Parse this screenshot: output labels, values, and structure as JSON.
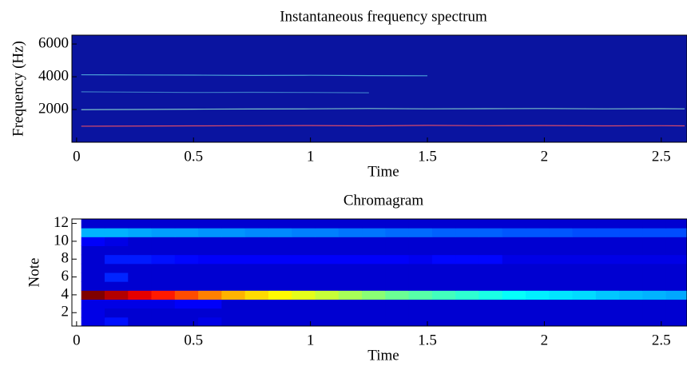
{
  "chart_data": [
    {
      "type": "line",
      "title": "Instantaneous frequency spectrum",
      "xlabel": "Time",
      "ylabel": "Frequency (Hz)",
      "background": "#0a14a0",
      "x": [
        0.02,
        0.25,
        0.5,
        0.75,
        1,
        1.25,
        1.5,
        1.75,
        2,
        2.25,
        2.5,
        2.6
      ],
      "series": [
        {
          "color": "#d84a6a",
          "values": [
            980,
            990,
            1000,
            1010,
            1020,
            1000,
            1030,
            1010,
            1020,
            1000,
            1010,
            1000
          ]
        },
        {
          "color": "#7cc0c8",
          "values": [
            1990,
            2000,
            2020,
            2030,
            2040,
            2060,
            2040,
            2050,
            2060,
            2040,
            2050,
            2040
          ]
        },
        {
          "color": "#3a78c8",
          "values": [
            3080,
            3060,
            3040,
            3050,
            3040,
            3020,
            null,
            null,
            null,
            null,
            null,
            null
          ]
        },
        {
          "color": "#4aa0d8",
          "values": [
            4120,
            4110,
            4100,
            4080,
            4090,
            4070,
            4060,
            null,
            null,
            null,
            null,
            null
          ]
        }
      ],
      "xlim": [
        -0.02,
        2.61
      ],
      "xticks": [
        0,
        0.5,
        1,
        1.5,
        2,
        2.5
      ],
      "ylim": [
        0,
        6540
      ],
      "yticks": [
        2000,
        4000,
        6000
      ]
    },
    {
      "type": "heatmap",
      "title": "Chromagram",
      "xlabel": "Time",
      "ylabel": "Note",
      "colormap": "jet",
      "clim": [
        0,
        1
      ],
      "x": [
        0.07,
        0.17,
        0.27,
        0.37,
        0.47,
        0.57,
        0.67,
        0.77,
        0.87,
        0.97,
        1.07,
        1.17,
        1.27,
        1.37,
        1.47,
        1.57,
        1.67,
        1.77,
        1.87,
        1.97,
        2.07,
        2.17,
        2.27,
        2.37,
        2.47,
        2.57
      ],
      "y": [
        1,
        2,
        3,
        4,
        5,
        6,
        7,
        8,
        9,
        10,
        11,
        12
      ],
      "z": [
        [
          0.1,
          0.14,
          0.08,
          0.08,
          0.08,
          0.1,
          0.08,
          0.08,
          0.08,
          0.08,
          0.08,
          0.08,
          0.08,
          0.08,
          0.08,
          0.08,
          0.08,
          0.08,
          0.08,
          0.08,
          0.08,
          0.08,
          0.08,
          0.08,
          0.08,
          0.08
        ],
        [
          0.1,
          0.08,
          0.08,
          0.08,
          0.08,
          0.08,
          0.08,
          0.08,
          0.08,
          0.08,
          0.08,
          0.08,
          0.08,
          0.08,
          0.08,
          0.08,
          0.08,
          0.08,
          0.08,
          0.08,
          0.08,
          0.08,
          0.08,
          0.08,
          0.08,
          0.08
        ],
        [
          0.1,
          0.1,
          0.1,
          0.1,
          0.12,
          0.12,
          0.08,
          0.08,
          0.08,
          0.08,
          0.08,
          0.08,
          0.08,
          0.08,
          0.08,
          0.08,
          0.08,
          0.08,
          0.08,
          0.08,
          0.08,
          0.08,
          0.08,
          0.08,
          0.08,
          0.08
        ],
        [
          1.0,
          0.95,
          0.9,
          0.85,
          0.8,
          0.75,
          0.7,
          0.66,
          0.63,
          0.6,
          0.57,
          0.54,
          0.51,
          0.48,
          0.46,
          0.44,
          0.42,
          0.4,
          0.38,
          0.36,
          0.35,
          0.34,
          0.32,
          0.31,
          0.3,
          0.29
        ],
        [
          0.08,
          0.08,
          0.08,
          0.08,
          0.08,
          0.08,
          0.08,
          0.08,
          0.08,
          0.08,
          0.08,
          0.08,
          0.08,
          0.08,
          0.08,
          0.08,
          0.08,
          0.08,
          0.08,
          0.08,
          0.08,
          0.08,
          0.08,
          0.08,
          0.08,
          0.08
        ],
        [
          0.08,
          0.16,
          0.08,
          0.08,
          0.08,
          0.08,
          0.08,
          0.08,
          0.08,
          0.08,
          0.08,
          0.08,
          0.08,
          0.08,
          0.08,
          0.08,
          0.08,
          0.08,
          0.08,
          0.08,
          0.08,
          0.08,
          0.08,
          0.08,
          0.08,
          0.08
        ],
        [
          0.08,
          0.08,
          0.08,
          0.08,
          0.08,
          0.08,
          0.08,
          0.08,
          0.08,
          0.08,
          0.08,
          0.08,
          0.08,
          0.08,
          0.08,
          0.08,
          0.08,
          0.08,
          0.08,
          0.08,
          0.08,
          0.08,
          0.08,
          0.08,
          0.08,
          0.08
        ],
        [
          0.08,
          0.15,
          0.15,
          0.14,
          0.13,
          0.12,
          0.12,
          0.12,
          0.12,
          0.12,
          0.12,
          0.12,
          0.12,
          0.12,
          0.11,
          0.13,
          0.13,
          0.13,
          0.1,
          0.1,
          0.1,
          0.1,
          0.1,
          0.1,
          0.1,
          0.1
        ],
        [
          0.08,
          0.08,
          0.08,
          0.08,
          0.08,
          0.08,
          0.08,
          0.08,
          0.08,
          0.08,
          0.08,
          0.08,
          0.08,
          0.08,
          0.08,
          0.08,
          0.08,
          0.08,
          0.08,
          0.08,
          0.08,
          0.08,
          0.08,
          0.08,
          0.08,
          0.08
        ],
        [
          0.12,
          0.1,
          0.08,
          0.08,
          0.08,
          0.08,
          0.08,
          0.08,
          0.08,
          0.08,
          0.08,
          0.08,
          0.08,
          0.08,
          0.08,
          0.08,
          0.08,
          0.08,
          0.08,
          0.08,
          0.08,
          0.08,
          0.08,
          0.08,
          0.08,
          0.08
        ],
        [
          0.3,
          0.3,
          0.29,
          0.28,
          0.28,
          0.27,
          0.27,
          0.26,
          0.26,
          0.25,
          0.25,
          0.24,
          0.24,
          0.23,
          0.23,
          0.22,
          0.22,
          0.22,
          0.21,
          0.21,
          0.21,
          0.2,
          0.2,
          0.2,
          0.2,
          0.2
        ],
        [
          0.08,
          0.08,
          0.08,
          0.08,
          0.08,
          0.08,
          0.08,
          0.08,
          0.08,
          0.08,
          0.08,
          0.08,
          0.08,
          0.08,
          0.08,
          0.08,
          0.08,
          0.08,
          0.08,
          0.08,
          0.08,
          0.08,
          0.08,
          0.08,
          0.08,
          0.08
        ]
      ],
      "xlim": [
        -0.02,
        2.61
      ],
      "xticks": [
        0,
        0.5,
        1,
        1.5,
        2,
        2.5
      ],
      "ylim": [
        0.5,
        12.5
      ],
      "yticks": [
        2,
        4,
        6,
        8,
        10,
        12
      ]
    }
  ]
}
